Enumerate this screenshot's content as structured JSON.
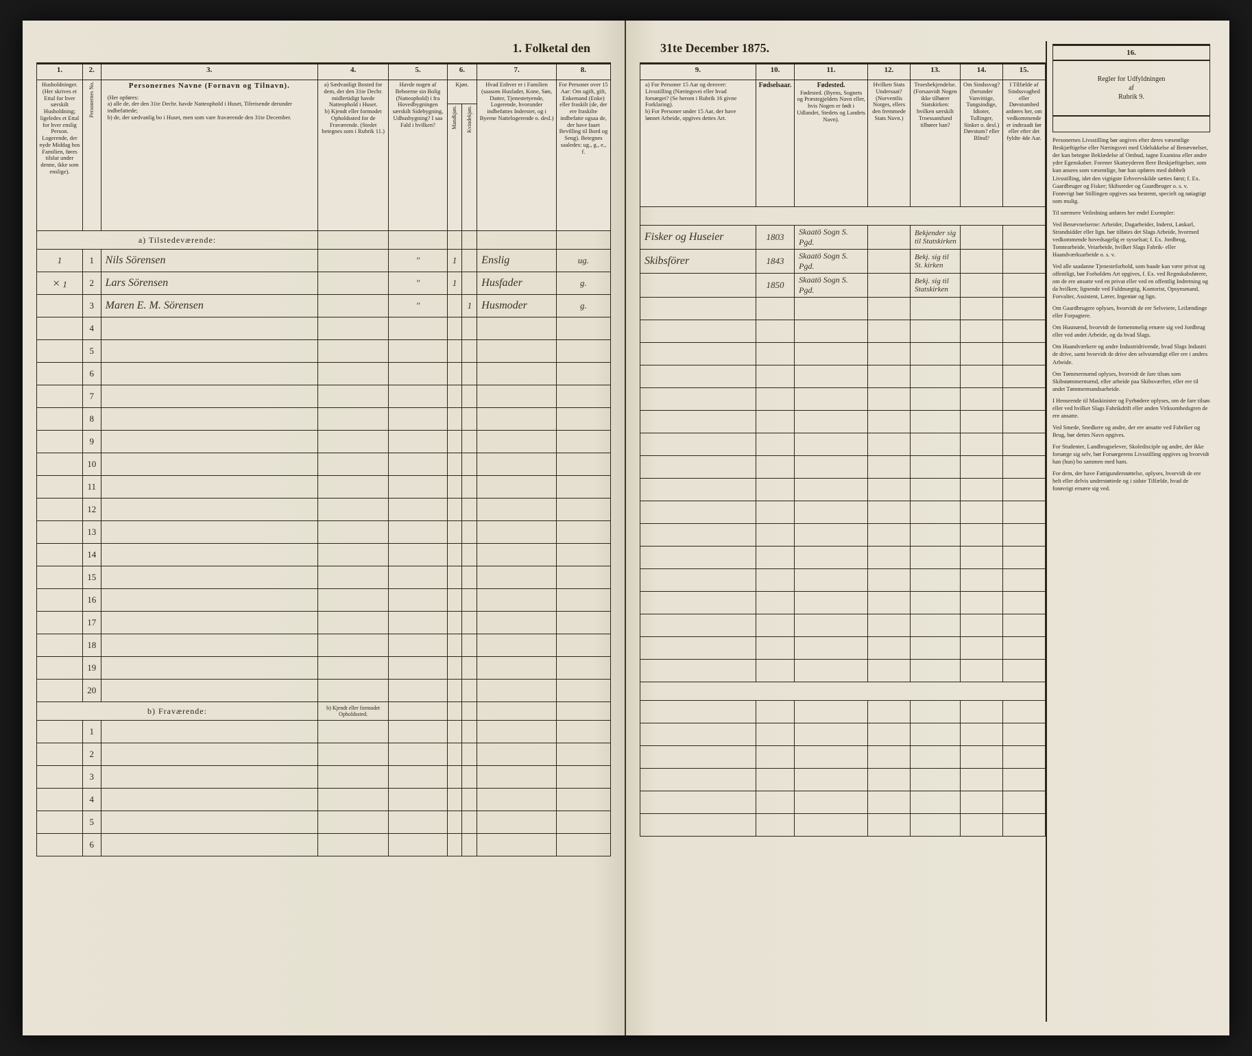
{
  "title_left": "1. Folketal den",
  "title_right": "31te December 1875.",
  "columns_left": {
    "c1": "1.",
    "c2": "2.",
    "c3": "3.",
    "c4": "4.",
    "c5": "5.",
    "c6": "6.",
    "c7": "7.",
    "c8": "8."
  },
  "columns_right": {
    "c9": "9.",
    "c10": "10.",
    "c11": "11.",
    "c12": "12.",
    "c13": "13.",
    "c14": "14.",
    "c15": "15.",
    "c16": "16."
  },
  "headers_left": {
    "h1": "Husholdninger. (Her skrives et Ettal for hver særskilt Husholdning; ligeledes et Ettal for hver enslig Person. Logerende, der nyde Middag hos Familien, føres tilslut under denne, ikke som enslige).",
    "h2": "Personernes No.",
    "h3_main": "Personernes Navne (Fornavn og Tilnavn).",
    "h3_sub": "(Her opføres:\na) alle de, der den 31te Decbr. havde Natteophold i Huset, Tilreisende derunder indbefattede;\nb) de, der sædvanlig bo i Huset, men som vare fraværende den 31te December.",
    "h4": "a) Sædvanligt Bosted for dem, der den 31te Decbr. midlertidigt havde Natteophold i Huset.\nb) Kjendt eller formodet Opholdssted for de Fraværende. (Stedet betegnes som i Rubrik 11.)",
    "h5": "Havde nogen af Beboerne sin Bolig (Natteophold) i fra Hovedbygningen særskilt Sidebygning, Udhusbygning? I saa Fald i hvilken?",
    "h6": "Kjøn.",
    "h6a": "Mandkjøn.",
    "h6b": "Kvindekjøn.",
    "h7": "Hvad Enhver er i Familien (saasom Husfader, Kone, Søn, Datter, Tjenestetyende, Logerende, hvorunder indbefattes Inderster, og i Byerne Nattelogerende o. desl.)",
    "h8": "For Personer over 15 Aar: Om ugift, gift, Enkemand (Enke) eller fraskilt (de, der ere fraskilte indbefatte ogsaa de, der have faaet Bevilling til Bord og Seng). Betegnes saaledes: ug., g., e., f."
  },
  "headers_right": {
    "h9": "a) For Personer 15 Aar og derover: Livsstilling (Næringsvei eller hvad forsørget? (Se herom i Rubrik 16 givne Forklaring).\nb) For Personer under 15 Aar, der have lønnet Arbeide, opgives dettes Art.",
    "h10": "Fødselsaar.",
    "h11": "Fødested. (Byens, Sognets og Præstegjeldets Navn eller, hvis Nogen er født i Udlandet, Stedets og Landets Navn).",
    "h12": "Hvilken Stats Undersaat? (Norventlis Norges, ellers den fremmede Stats Navn.)",
    "h13": "Troesbekjendelse. (Forsaavidt Nogen ikke tilhører Statskirken: hvilken særskilt Troessamfund tilhører han?",
    "h14": "Om Sindssvag? (herunder Vanvittige, Tungsindige, Idioter, Tullinger, Sinker o. desl.) Døvstum? eller Blind?",
    "h15": "I Tilfælde af Sindssvaghed eller Døvstumhed anføres her, om vedkommende er indtraadt før eller efter det fyldte 4de Aar."
  },
  "section_a": "a) Tilstedeværende:",
  "section_b": "b) Fraværende:",
  "section_b4": "b) Kjendt eller formodet Opholdssted.",
  "rows_a": [
    {
      "n": "1",
      "hh": "1",
      "name": "Nils Sörensen",
      "col4": "",
      "col5": "\"",
      "col6a": "1",
      "col6b": "",
      "col7": "Enslig",
      "col8": "ug.",
      "col9": "Fisker og Huseier",
      "col10": "1803",
      "col11": "Skaatö Sogn S. Pgd.",
      "col12": "",
      "col13": "Bekjender sig til Statskirken",
      "col14": "",
      "col15": ""
    },
    {
      "n": "2",
      "hh": "1",
      "hhmark": "×",
      "name": "Lars Sörensen",
      "col4": "",
      "col5": "\"",
      "col6a": "1",
      "col6b": "",
      "col7": "Husfader",
      "col8": "g.",
      "col9": "Skibsförer",
      "col10": "1843",
      "col11": "Skaatö Sogn S. Pgd.",
      "col12": "",
      "col13": "Bekj. sig til St. kirken",
      "col14": "",
      "col15": ""
    },
    {
      "n": "3",
      "hh": "",
      "name": "Maren E. M. Sörensen",
      "col4": "",
      "col5": "\"",
      "col6a": "",
      "col6b": "1",
      "col7": "Husmoder",
      "col8": "g.",
      "col9": "",
      "col10": "1850",
      "col11": "Skaatö Sogn S. Pgd.",
      "col12": "",
      "col13": "Bekj. sig til Statskirken",
      "col14": "",
      "col15": ""
    }
  ],
  "blank_a": [
    "4",
    "5",
    "6",
    "7",
    "8",
    "9",
    "10",
    "11",
    "12",
    "13",
    "14",
    "15",
    "16",
    "17",
    "18",
    "19",
    "20"
  ],
  "blank_b": [
    "1",
    "2",
    "3",
    "4",
    "5",
    "6"
  ],
  "rubrik": {
    "hd": "16.",
    "sub": "Regler for Udfyldningen\naf\nRubrik 9.",
    "p1": "Personernes Livsstilling bør angives efter deres væsentlige Beskjæftigelse eller Næringsvei med Udelukkelse af Benævnelser, der kun betegne Beklædelse af Ombud, tagne Examina eller andre ydre Egenskaber. Forener Skatteyderen flere Beskjæftigelser, som kun ansees som væsentlige, bør han opføres med dobbelt Livsstilling, idet den vigtigste Erhvervskilde sættes først; f. Ex. Gaardbruger og Fisker; Skibsreder og Gaardbruger o. s. v. Forøvrigt bør Stillingen opgives saa bestemt, specielt og nøiagtigt som mulig.",
    "p2": "Til nærmere Veiledning anføres her endel Exempler:",
    "p3": "Ved Benævnelserne: Arbeider, Dagarbeider, Inderst, Løskarl, Strandsidder eller lign. bør tilføies det Slags Arbeide, hvormed vedkommende hovedsagelig er sysselsat; f. Ex. Jordbrug, Tomtearbeide, Veiarbeide, hvilket Slags Fabrik- eller Haandværksarbeide o. s. v.",
    "p4": "Ved alle saadanne Tjenesteforhold, som baade kan være privat og offentligt, bør Forholdets Art opgives, f. Ex. ved Regnskabsførere, om de ere ansatte ved en privat eller ved en offentlig Indretning og da hvilken; lignende ved Fuldmægtig, Kontorist, Opsynsmand, Forvalter, Assistent, Lærer, Ingeniør og lign.",
    "p5": "Om Gaardbrugere oplyses, hvorvidt de ere Selveiere, Leilændinge eller Forpagtere.",
    "p6": "Om Husmænd, hvorvidt de fornemmelig ernære sig ved Jordbrug eller ved andet Arbeide, og da hvad Slags.",
    "p7": "Om Haandværkere og andre Industridrivende, hvad Slags Industri de drive, samt hvorvidt de drive den selvstændigt eller ere i andres Arbeide.",
    "p8": "Om Tømmermænd oplyses, hvorvidt de fare tilsøs som Skibstømmermænd, eller arbeide paa Skibsværfter, eller ere til andet Tømmermandsarbeide.",
    "p9": "I Henseende til Maskinister og Fyrbødere oplyses, om de fare tilsøs eller ved hvilket Slags Fabrikdrift eller anden Virksomhedsgren de ere ansatte.",
    "p10": "Ved Smede, Snedkere og andre, der ere ansatte ved Fabriker og Brug, bør dettes Navn opgives.",
    "p11": "For Studenter, Landbrugselever, Skoledisciple og andre, der ikke forsørge sig selv, bør Forsørgerens Livsstilling opgives og hvorvidt han (hun) bo sammen med ham.",
    "p12": "For dem, der have Fattigunderstøttelse, oplyses, hvorvidt de ere helt eller delvis understøttede og i sidste Tilfælde, hvad de forøvrigt ernære sig ved."
  }
}
